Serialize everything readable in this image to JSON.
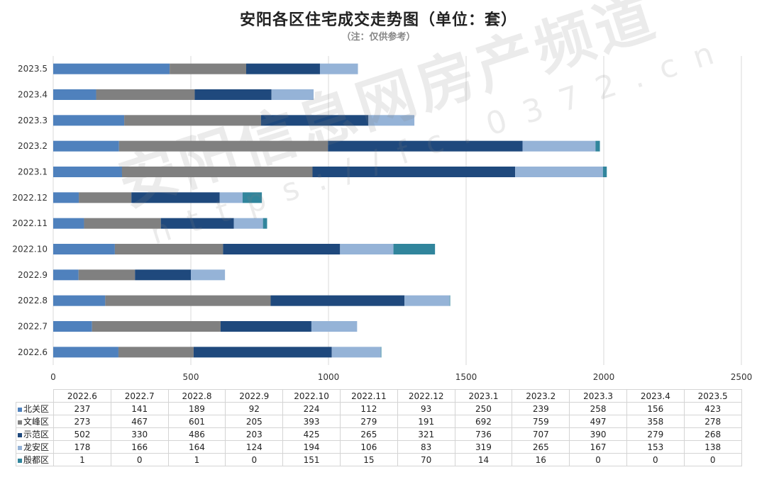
{
  "title": "安阳各区住宅成交走势图（单位：套）",
  "subtitle": "（注：仅供参考）",
  "watermark": {
    "main": "安阳信息网房产频道",
    "url": "https://fc.0372.cn"
  },
  "chart_data": {
    "type": "bar",
    "orientation": "horizontal",
    "stacked": true,
    "categories": [
      "2022.6",
      "2022.7",
      "2022.8",
      "2022.9",
      "2022.10",
      "2022.11",
      "2022.12",
      "2023.1",
      "2023.2",
      "2023.3",
      "2023.4",
      "2023.5"
    ],
    "series": [
      {
        "name": "北关区",
        "color": "#4f81bd",
        "values": [
          237,
          141,
          189,
          92,
          224,
          112,
          93,
          250,
          239,
          258,
          156,
          423
        ]
      },
      {
        "name": "文峰区",
        "color": "#808080",
        "values": [
          273,
          467,
          601,
          205,
          393,
          279,
          191,
          692,
          759,
          497,
          358,
          278
        ]
      },
      {
        "name": "示范区",
        "color": "#1f497d",
        "values": [
          502,
          330,
          486,
          203,
          425,
          265,
          321,
          736,
          707,
          390,
          279,
          268
        ]
      },
      {
        "name": "龙安区",
        "color": "#95b3d7",
        "values": [
          178,
          166,
          164,
          124,
          194,
          106,
          83,
          319,
          265,
          167,
          153,
          138
        ]
      },
      {
        "name": "殷都区",
        "color": "#31859c",
        "values": [
          1,
          0,
          1,
          0,
          151,
          15,
          70,
          14,
          16,
          0,
          0,
          0
        ]
      }
    ],
    "xlim": [
      0,
      2500
    ],
    "xticks": [
      "0",
      "500",
      "1000",
      "1500",
      "2000",
      "2500"
    ],
    "grid": true,
    "legend": "table-below"
  }
}
